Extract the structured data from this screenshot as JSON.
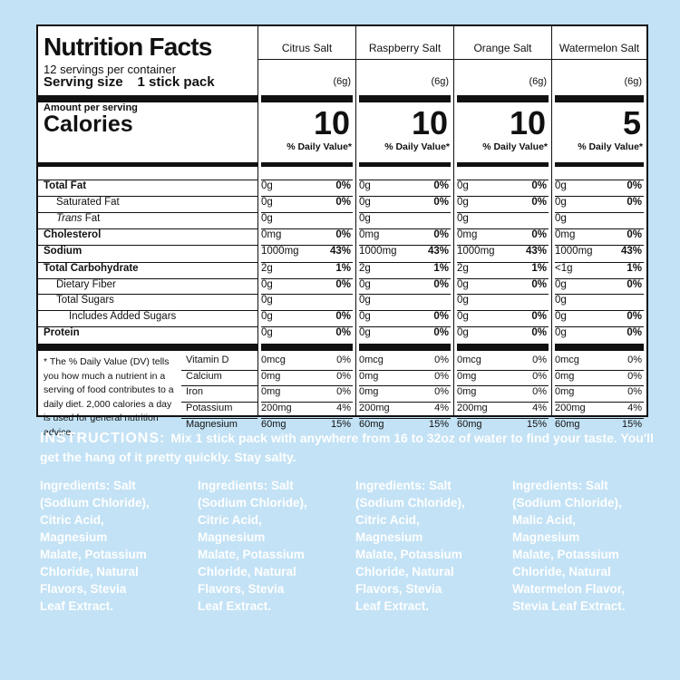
{
  "label": {
    "title": "Nutrition Facts",
    "servings_per_container": "12 servings per container",
    "serving_size_label": "Serving size",
    "serving_size_value": "1 stick pack",
    "amount_per_serving": "Amount per serving",
    "calories_label": "Calories",
    "dv_header": "% Daily Value*",
    "nutrient_names": [
      "Total Fat",
      "Saturated Fat",
      "Trans Fat",
      "Cholesterol",
      "Sodium",
      "Total Carbohydrate",
      "Dietary Fiber",
      "Total Sugars",
      "Includes Added Sugars",
      "Protein"
    ],
    "vitamin_names": [
      "Vitamin D",
      "Calcium",
      "Iron",
      "Potassium",
      "Magnesium"
    ],
    "footnote": "* The % Daily Value (DV) tells you how much a nutrient in a serving of food contributes to a daily diet. 2,000 calories a day is used for general nutrition advice.",
    "columns": [
      {
        "flavor": "Citrus Salt",
        "serving_grams": "(6g)",
        "calories": "10",
        "amounts": [
          "0g",
          "0g",
          "0g",
          "0mg",
          "1000mg",
          "2g",
          "0g",
          "0g",
          "0g",
          "0g"
        ],
        "dvs": [
          "0%",
          "0%",
          "",
          "0%",
          "43%",
          "1%",
          "0%",
          "",
          "0%",
          "0%"
        ],
        "vit_amounts": [
          "0mcg",
          "0mg",
          "0mg",
          "200mg",
          "60mg"
        ],
        "vit_dvs": [
          "0%",
          "0%",
          "0%",
          "4%",
          "15%"
        ]
      },
      {
        "flavor": "Raspberry Salt",
        "serving_grams": "(6g)",
        "calories": "10",
        "amounts": [
          "0g",
          "0g",
          "0g",
          "0mg",
          "1000mg",
          "2g",
          "0g",
          "0g",
          "0g",
          "0g"
        ],
        "dvs": [
          "0%",
          "0%",
          "",
          "0%",
          "43%",
          "1%",
          "0%",
          "",
          "0%",
          "0%"
        ],
        "vit_amounts": [
          "0mcg",
          "0mg",
          "0mg",
          "200mg",
          "60mg"
        ],
        "vit_dvs": [
          "0%",
          "0%",
          "0%",
          "4%",
          "15%"
        ]
      },
      {
        "flavor": "Orange Salt",
        "serving_grams": "(6g)",
        "calories": "10",
        "amounts": [
          "0g",
          "0g",
          "0g",
          "0mg",
          "1000mg",
          "2g",
          "0g",
          "0g",
          "0g",
          "0g"
        ],
        "dvs": [
          "0%",
          "0%",
          "",
          "0%",
          "43%",
          "1%",
          "0%",
          "",
          "0%",
          "0%"
        ],
        "vit_amounts": [
          "0mcg",
          "0mg",
          "0mg",
          "200mg",
          "60mg"
        ],
        "vit_dvs": [
          "0%",
          "0%",
          "0%",
          "4%",
          "15%"
        ]
      },
      {
        "flavor": "Watermelon Salt",
        "serving_grams": "(6g)",
        "calories": "5",
        "amounts": [
          "0g",
          "0g",
          "0g",
          "0mg",
          "1000mg",
          "<1g",
          "0g",
          "0g",
          "0g",
          "0g"
        ],
        "dvs": [
          "0%",
          "0%",
          "",
          "0%",
          "43%",
          "1%",
          "0%",
          "",
          "0%",
          "0%"
        ],
        "vit_amounts": [
          "0mcg",
          "0mg",
          "0mg",
          "200mg",
          "60mg"
        ],
        "vit_dvs": [
          "0%",
          "0%",
          "0%",
          "4%",
          "15%"
        ]
      }
    ]
  },
  "instructions": {
    "heading": "INSTRUCTIONS:",
    "text": "Mix 1 stick pack with anywhere from 16 to 32oz of water to find your taste. You'll get the hang of it pretty quickly. Stay salty."
  },
  "ingredients": [
    "Ingredients: Salt\n(Sodium Chloride),\nCitric Acid,\nMagnesium\nMalate, Potassium\nChloride, Natural\nFlavors, Stevia\nLeaf Extract.",
    "Ingredients: Salt\n(Sodium Chloride),\nCitric Acid,\nMagnesium\nMalate, Potassium\nChloride, Natural\nFlavors, Stevia\nLeaf Extract.",
    "Ingredients: Salt\n(Sodium Chloride),\nCitric Acid,\nMagnesium\nMalate, Potassium\nChloride, Natural\nFlavors, Stevia\nLeaf Extract.",
    "Ingredients: Salt\n(Sodium Chloride),\nMalic Acid,\nMagnesium\nMalate, Potassium\nChloride, Natural\nWatermelon Flavor,\nStevia Leaf Extract."
  ]
}
